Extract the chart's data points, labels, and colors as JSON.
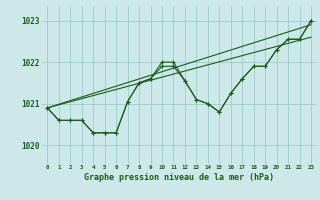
{
  "background_color": "#cce8e8",
  "grid_color": "#99cccc",
  "line_color": "#1a5c1a",
  "title": "Graphe pression niveau de la mer (hPa)",
  "ylabel_ticks": [
    1020,
    1021,
    1022,
    1023
  ],
  "xlim": [
    -0.5,
    23.5
  ],
  "ylim": [
    1019.55,
    1023.35
  ],
  "hours": [
    0,
    1,
    2,
    3,
    4,
    5,
    6,
    7,
    8,
    9,
    10,
    11,
    12,
    13,
    14,
    15,
    16,
    17,
    18,
    19,
    20,
    21,
    22,
    23
  ],
  "line1": [
    1020.9,
    1020.6,
    1020.6,
    1020.6,
    1020.3,
    1020.3,
    1020.3,
    1021.05,
    1021.5,
    1021.6,
    1021.9,
    1021.9,
    1021.55,
    1021.1,
    1021.0,
    1020.8,
    1021.25,
    1021.6,
    1021.9,
    1021.9,
    1022.3,
    1022.55,
    1022.55,
    1023.0
  ],
  "line2": [
    1020.9,
    1020.6,
    1020.6,
    1020.6,
    1020.3,
    1020.3,
    1020.3,
    1021.05,
    1021.5,
    1021.6,
    1022.0,
    1022.0,
    1021.55,
    1021.1,
    1021.0,
    1020.8,
    1021.25,
    1021.6,
    1021.9,
    1021.9,
    1022.3,
    1022.55,
    1022.55,
    1023.0
  ],
  "line3_x": [
    0,
    23
  ],
  "line3_y": [
    1020.9,
    1022.9
  ],
  "line4_x": [
    0,
    23
  ],
  "line4_y": [
    1020.9,
    1022.6
  ],
  "xtick_labels": [
    "0",
    "1",
    "2",
    "3",
    "4",
    "5",
    "6",
    "7",
    "8",
    "9",
    "10",
    "11",
    "12",
    "13",
    "14",
    "15",
    "16",
    "17",
    "18",
    "19",
    "20",
    "21",
    "22",
    "23"
  ]
}
